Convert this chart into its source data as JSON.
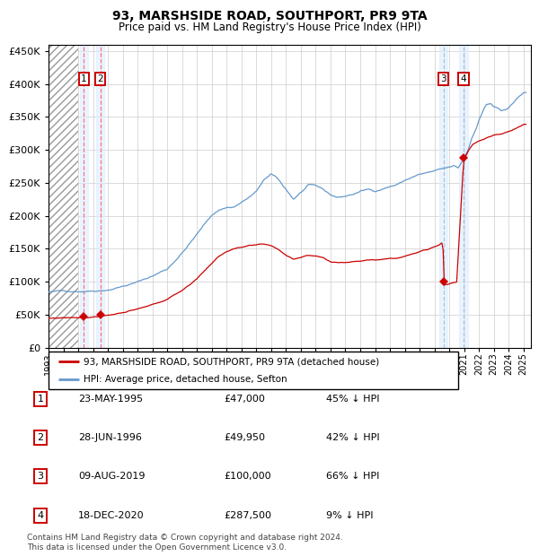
{
  "title": "93, MARSHSIDE ROAD, SOUTHPORT, PR9 9TA",
  "subtitle": "Price paid vs. HM Land Registry's House Price Index (HPI)",
  "sale_dates_num": [
    1995.38,
    1996.49,
    2019.6,
    2020.96
  ],
  "sale_prices": [
    47000,
    49950,
    100000,
    287500
  ],
  "sale_labels": [
    "1",
    "2",
    "3",
    "4"
  ],
  "hpi_label": "HPI: Average price, detached house, Sefton",
  "property_label": "93, MARSHSIDE ROAD, SOUTHPORT, PR9 9TA (detached house)",
  "red_color": "#cc0000",
  "blue_color": "#6699cc",
  "shade_color": "#ddeeff",
  "ylim": [
    0,
    460000
  ],
  "xlim_start": 1993.0,
  "xlim_end": 2025.5,
  "footer1": "Contains HM Land Registry data © Crown copyright and database right 2024.",
  "footer2": "This data is licensed under the Open Government Licence v3.0.",
  "table_rows": [
    [
      "1",
      "23-MAY-1995",
      "£47,000",
      "45% ↓ HPI"
    ],
    [
      "2",
      "28-JUN-1996",
      "£49,950",
      "42% ↓ HPI"
    ],
    [
      "3",
      "09-AUG-2019",
      "£100,000",
      "66% ↓ HPI"
    ],
    [
      "4",
      "18-DEC-2020",
      "£287,500",
      "9% ↓ HPI"
    ]
  ],
  "hpi_anchors": [
    [
      1993.0,
      84000
    ],
    [
      1994.0,
      85000
    ],
    [
      1995.0,
      86000
    ],
    [
      1996.0,
      88000
    ],
    [
      1997.0,
      91000
    ],
    [
      1998.0,
      97000
    ],
    [
      1999.0,
      103000
    ],
    [
      2000.0,
      112000
    ],
    [
      2001.0,
      123000
    ],
    [
      2002.0,
      148000
    ],
    [
      2003.0,
      176000
    ],
    [
      2004.0,
      205000
    ],
    [
      2004.5,
      213000
    ],
    [
      2005.0,
      217000
    ],
    [
      2005.5,
      218000
    ],
    [
      2006.0,
      225000
    ],
    [
      2006.5,
      232000
    ],
    [
      2007.0,
      240000
    ],
    [
      2007.5,
      258000
    ],
    [
      2008.0,
      265000
    ],
    [
      2008.3,
      262000
    ],
    [
      2008.8,
      248000
    ],
    [
      2009.5,
      228000
    ],
    [
      2010.0,
      238000
    ],
    [
      2010.5,
      248000
    ],
    [
      2011.0,
      246000
    ],
    [
      2011.5,
      240000
    ],
    [
      2012.0,
      232000
    ],
    [
      2012.5,
      228000
    ],
    [
      2013.0,
      230000
    ],
    [
      2013.5,
      233000
    ],
    [
      2014.0,
      237000
    ],
    [
      2014.5,
      240000
    ],
    [
      2015.0,
      238000
    ],
    [
      2015.5,
      242000
    ],
    [
      2016.0,
      246000
    ],
    [
      2016.5,
      249000
    ],
    [
      2017.0,
      255000
    ],
    [
      2017.5,
      260000
    ],
    [
      2018.0,
      264000
    ],
    [
      2018.5,
      266000
    ],
    [
      2019.0,
      268000
    ],
    [
      2019.5,
      270000
    ],
    [
      2020.0,
      272000
    ],
    [
      2020.3,
      274000
    ],
    [
      2020.6,
      270000
    ],
    [
      2021.0,
      285000
    ],
    [
      2021.3,
      300000
    ],
    [
      2021.5,
      315000
    ],
    [
      2021.8,
      330000
    ],
    [
      2022.0,
      345000
    ],
    [
      2022.3,
      360000
    ],
    [
      2022.5,
      368000
    ],
    [
      2022.8,
      370000
    ],
    [
      2023.0,
      365000
    ],
    [
      2023.3,
      362000
    ],
    [
      2023.5,
      358000
    ],
    [
      2023.8,
      360000
    ],
    [
      2024.0,
      362000
    ],
    [
      2024.3,
      368000
    ],
    [
      2024.6,
      375000
    ],
    [
      2025.0,
      385000
    ]
  ],
  "prop_anchors_seg1": [
    [
      1993.0,
      44000
    ],
    [
      1994.5,
      46000
    ],
    [
      1995.38,
      47000
    ],
    [
      1995.6,
      47500
    ],
    [
      1996.0,
      48500
    ],
    [
      1996.49,
      49950
    ],
    [
      1997.0,
      52000
    ],
    [
      1998.0,
      56000
    ],
    [
      1999.0,
      60000
    ],
    [
      2000.0,
      66000
    ],
    [
      2001.0,
      74000
    ],
    [
      2002.0,
      88000
    ],
    [
      2003.0,
      106000
    ],
    [
      2003.5,
      118000
    ],
    [
      2004.0,
      130000
    ],
    [
      2004.5,
      140000
    ],
    [
      2005.0,
      148000
    ],
    [
      2005.5,
      152000
    ],
    [
      2006.0,
      153000
    ],
    [
      2006.5,
      155000
    ],
    [
      2007.0,
      155000
    ],
    [
      2007.5,
      156000
    ],
    [
      2008.0,
      154000
    ],
    [
      2008.5,
      148000
    ],
    [
      2009.0,
      140000
    ],
    [
      2009.5,
      135000
    ],
    [
      2010.0,
      138000
    ],
    [
      2010.5,
      141000
    ],
    [
      2011.0,
      140000
    ],
    [
      2011.5,
      138000
    ],
    [
      2012.0,
      132000
    ],
    [
      2012.5,
      130000
    ],
    [
      2013.0,
      131000
    ],
    [
      2013.5,
      133000
    ],
    [
      2014.0,
      135000
    ],
    [
      2014.5,
      137000
    ],
    [
      2015.0,
      136000
    ],
    [
      2015.5,
      138000
    ],
    [
      2016.0,
      140000
    ],
    [
      2016.5,
      141000
    ],
    [
      2017.0,
      144000
    ],
    [
      2017.5,
      147000
    ],
    [
      2018.0,
      150000
    ],
    [
      2018.5,
      153000
    ],
    [
      2019.0,
      157000
    ],
    [
      2019.3,
      161000
    ],
    [
      2019.58,
      165000
    ],
    [
      2019.6,
      100000
    ],
    [
      2020.0,
      102000
    ],
    [
      2020.5,
      105000
    ],
    [
      2020.96,
      287500
    ],
    [
      2021.0,
      291000
    ],
    [
      2021.3,
      305000
    ],
    [
      2021.6,
      315000
    ],
    [
      2022.0,
      320000
    ],
    [
      2022.5,
      325000
    ],
    [
      2023.0,
      328000
    ],
    [
      2023.5,
      330000
    ],
    [
      2024.0,
      333000
    ],
    [
      2024.5,
      338000
    ],
    [
      2025.0,
      344000
    ]
  ]
}
